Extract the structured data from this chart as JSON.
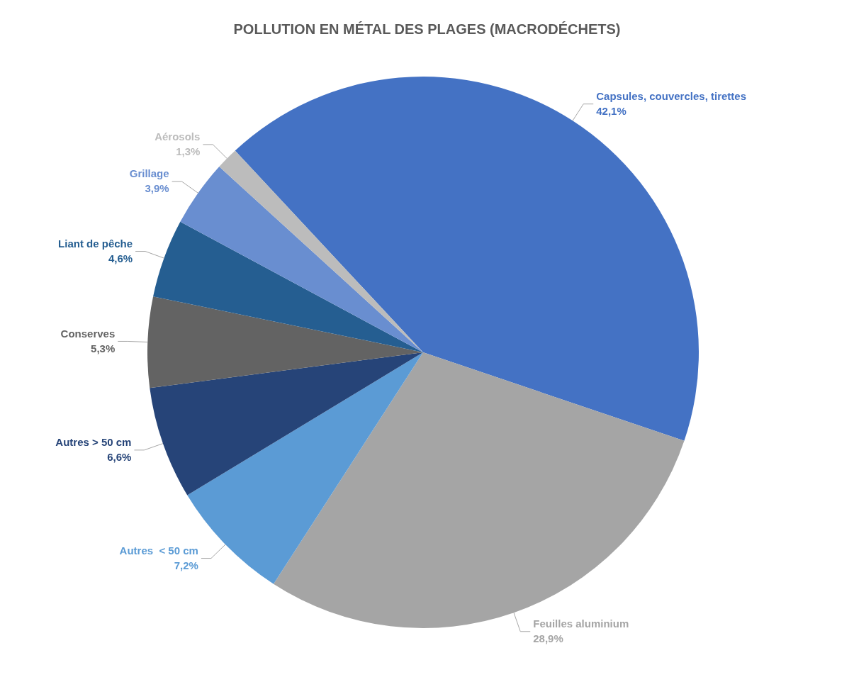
{
  "chart_data": {
    "type": "pie",
    "title": "POLLUTION EN MÉTAL DES PLAGES (MACRODÉCHETS)",
    "categories": [
      "Capsules, couvercles, tirettes",
      "Feuilles aluminium",
      "Autres  < 50 cm",
      "Autres > 50 cm",
      "Conserves",
      "Liant de pêche",
      "Grillage",
      "Aérosols"
    ],
    "values": [
      42.1,
      28.9,
      7.2,
      6.6,
      5.3,
      4.6,
      3.9,
      1.3
    ],
    "value_labels": [
      "42,1%",
      "28,9%",
      "7,2%",
      "6,6%",
      "5,3%",
      "4,6%",
      "3,9%",
      "1,3%"
    ],
    "colors": [
      "#4472c4",
      "#a5a5a5",
      "#5b9bd5",
      "#264478",
      "#636363",
      "#255e91",
      "#698ed0",
      "#bcbcbc"
    ],
    "legend": false
  }
}
